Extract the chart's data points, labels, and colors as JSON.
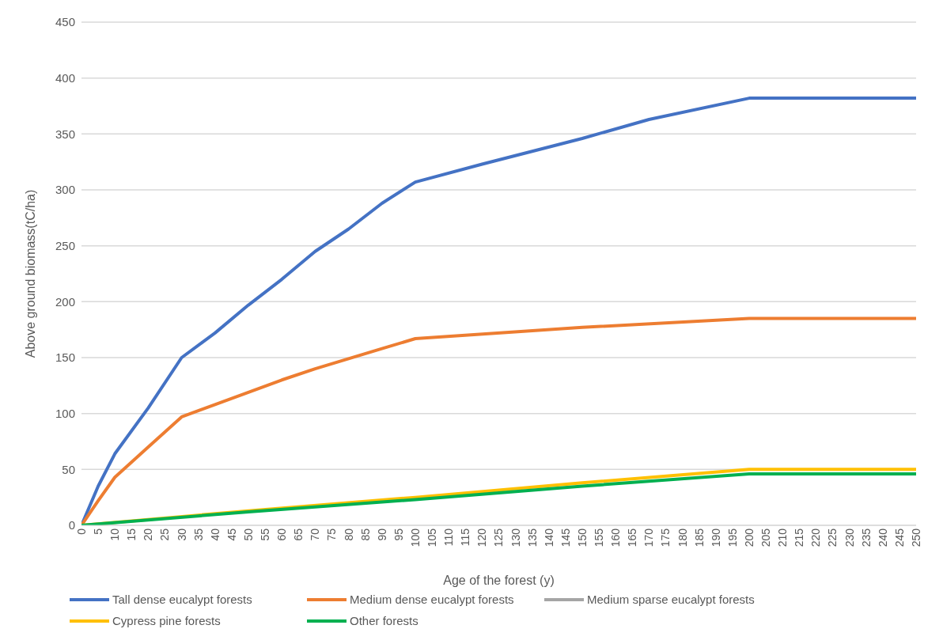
{
  "chart_data": {
    "type": "line",
    "xlabel": "Age of the forest (y)",
    "ylabel": "Above ground biomass(tC/ha)",
    "xlim": [
      0,
      250
    ],
    "xticks": [
      0,
      5,
      10,
      15,
      20,
      25,
      30,
      35,
      40,
      45,
      50,
      55,
      60,
      65,
      70,
      75,
      80,
      85,
      90,
      95,
      100,
      105,
      110,
      115,
      120,
      125,
      130,
      135,
      140,
      145,
      150,
      155,
      160,
      165,
      170,
      175,
      180,
      185,
      190,
      195,
      200,
      205,
      210,
      215,
      220,
      225,
      230,
      235,
      240,
      245,
      250
    ],
    "ylim": [
      0,
      450
    ],
    "yticks": [
      0,
      50,
      100,
      150,
      200,
      250,
      300,
      350,
      400,
      450
    ],
    "grid": "y",
    "legend": "bottom",
    "marker": "none",
    "line_style": "solid",
    "series": [
      {
        "name": "Tall dense eucalypt forests",
        "color": "#4472c4",
        "x": [
          0,
          5,
          10,
          20,
          30,
          40,
          50,
          60,
          70,
          80,
          90,
          100,
          120,
          150,
          170,
          200,
          250
        ],
        "values": [
          0,
          35,
          64,
          105,
          150,
          172,
          197,
          220,
          245,
          265,
          288,
          307,
          323,
          346,
          363,
          382,
          382
        ]
      },
      {
        "name": "Medium dense eucalypt forests",
        "color": "#ed7d31",
        "x": [
          0,
          5,
          10,
          20,
          30,
          40,
          50,
          60,
          70,
          80,
          90,
          100,
          150,
          200,
          250
        ],
        "values": [
          0,
          22,
          43,
          70,
          97,
          108,
          119,
          130,
          140,
          149,
          158,
          167,
          177,
          185,
          185
        ]
      },
      {
        "name": "Medium sparse eucalypt forests",
        "color": "#a5a5a5"
      },
      {
        "name": "Cypress pine forests",
        "color": "#ffc000",
        "x": [
          0,
          50,
          100,
          150,
          200,
          250
        ],
        "values": [
          0,
          13,
          25,
          38,
          50,
          50
        ]
      },
      {
        "name": "Other forests",
        "color": "#00b050",
        "x": [
          0,
          50,
          100,
          150,
          200,
          250
        ],
        "values": [
          0,
          12,
          23,
          35,
          46,
          46
        ]
      }
    ]
  }
}
